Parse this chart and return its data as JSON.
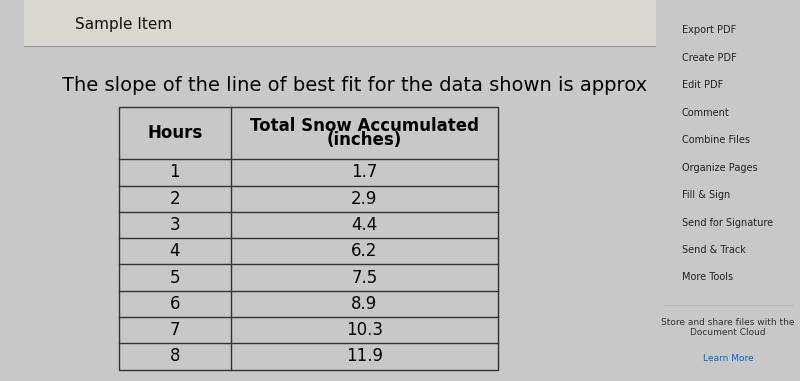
{
  "title_text": "The slope of the line of best fit for the data shown is approx",
  "sample_item_text": "Sample Item",
  "col1_header": "Hours",
  "col2_header_line1": "Total Snow Accumulated",
  "col2_header_line2": "(inches)",
  "hours": [
    1,
    2,
    3,
    4,
    5,
    6,
    7,
    8
  ],
  "snow": [
    "1.7",
    "2.9",
    "4.4",
    "6.2",
    "7.5",
    "8.9",
    "10.3",
    "11.9"
  ],
  "outer_bg_color": "#c8c8c8",
  "toolbar_bg": "#e8e8e8",
  "page_bg": "#ffffff",
  "sample_header_bg": "#d8d8d0",
  "table_border_color": "#333333",
  "title_fontsize": 14,
  "header_fontsize": 12,
  "cell_fontsize": 12,
  "sample_fontsize": 11,
  "sidebar_items": [
    "Export PDF",
    "Create PDF",
    "Edit PDF",
    "Comment",
    "Combine Files",
    "Organize Pages",
    "Fill & Sign",
    "Send for Signature",
    "Send & Track",
    "More Tools"
  ],
  "sidebar_footer": "Store and share files with the\nDocument Cloud",
  "sidebar_footer2": "Learn More"
}
